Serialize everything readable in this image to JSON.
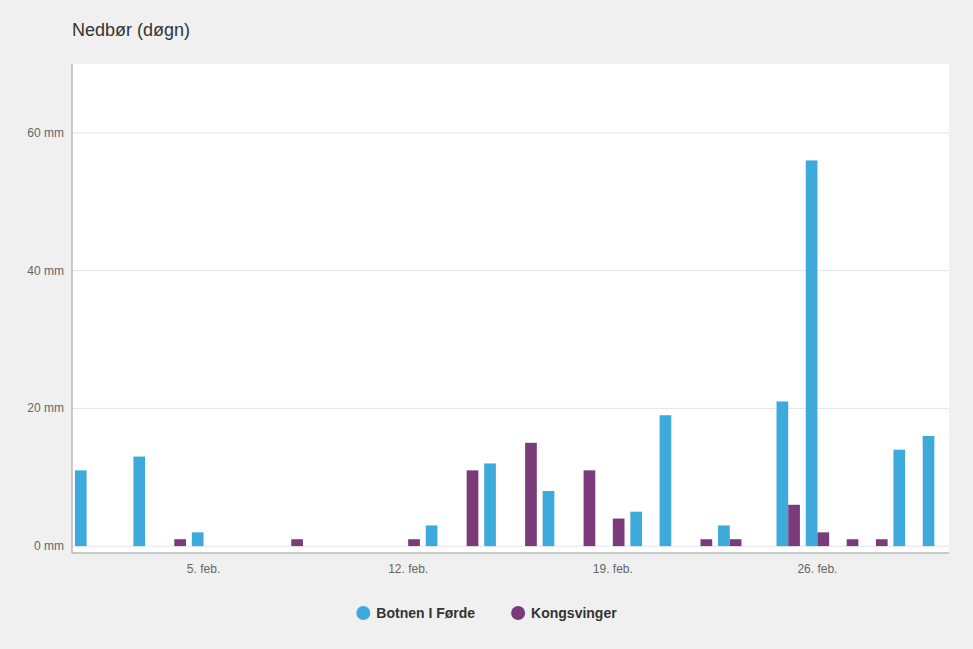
{
  "chart_data": {
    "type": "bar",
    "title": "Nedbør (døgn)",
    "categories": [
      null,
      null,
      null,
      null,
      "5. feb.",
      null,
      null,
      null,
      null,
      null,
      null,
      "12. feb.",
      null,
      null,
      null,
      null,
      null,
      null,
      "19. feb.",
      null,
      null,
      null,
      null,
      null,
      null,
      "26. feb.",
      null,
      null,
      null,
      null
    ],
    "series": [
      {
        "name": "Botnen I Førde",
        "color": "#3eaadc",
        "values": [
          11,
          0,
          13,
          0,
          2,
          0,
          0,
          0,
          0,
          0,
          0,
          0,
          3,
          0,
          12,
          0,
          8,
          0,
          0,
          5,
          19,
          0,
          3,
          0,
          21,
          56,
          0,
          0,
          14,
          16
        ]
      },
      {
        "name": "Kongsvinger",
        "color": "#7B3B7A",
        "values": [
          0,
          0,
          0,
          1,
          0,
          0,
          0,
          1,
          0,
          0,
          0,
          1,
          0,
          11,
          0,
          15,
          0,
          11,
          4,
          0,
          0,
          1,
          1,
          0,
          6,
          2,
          1,
          1,
          0,
          0
        ]
      }
    ],
    "ylim": [
      -1,
      70
    ],
    "yticks": [
      {
        "value": 0,
        "label": "0 mm"
      },
      {
        "value": 20,
        "label": "20 mm"
      },
      {
        "value": 40,
        "label": "40 mm"
      },
      {
        "value": 60,
        "label": "60 mm"
      }
    ],
    "grid": true,
    "legend": "bottom"
  }
}
